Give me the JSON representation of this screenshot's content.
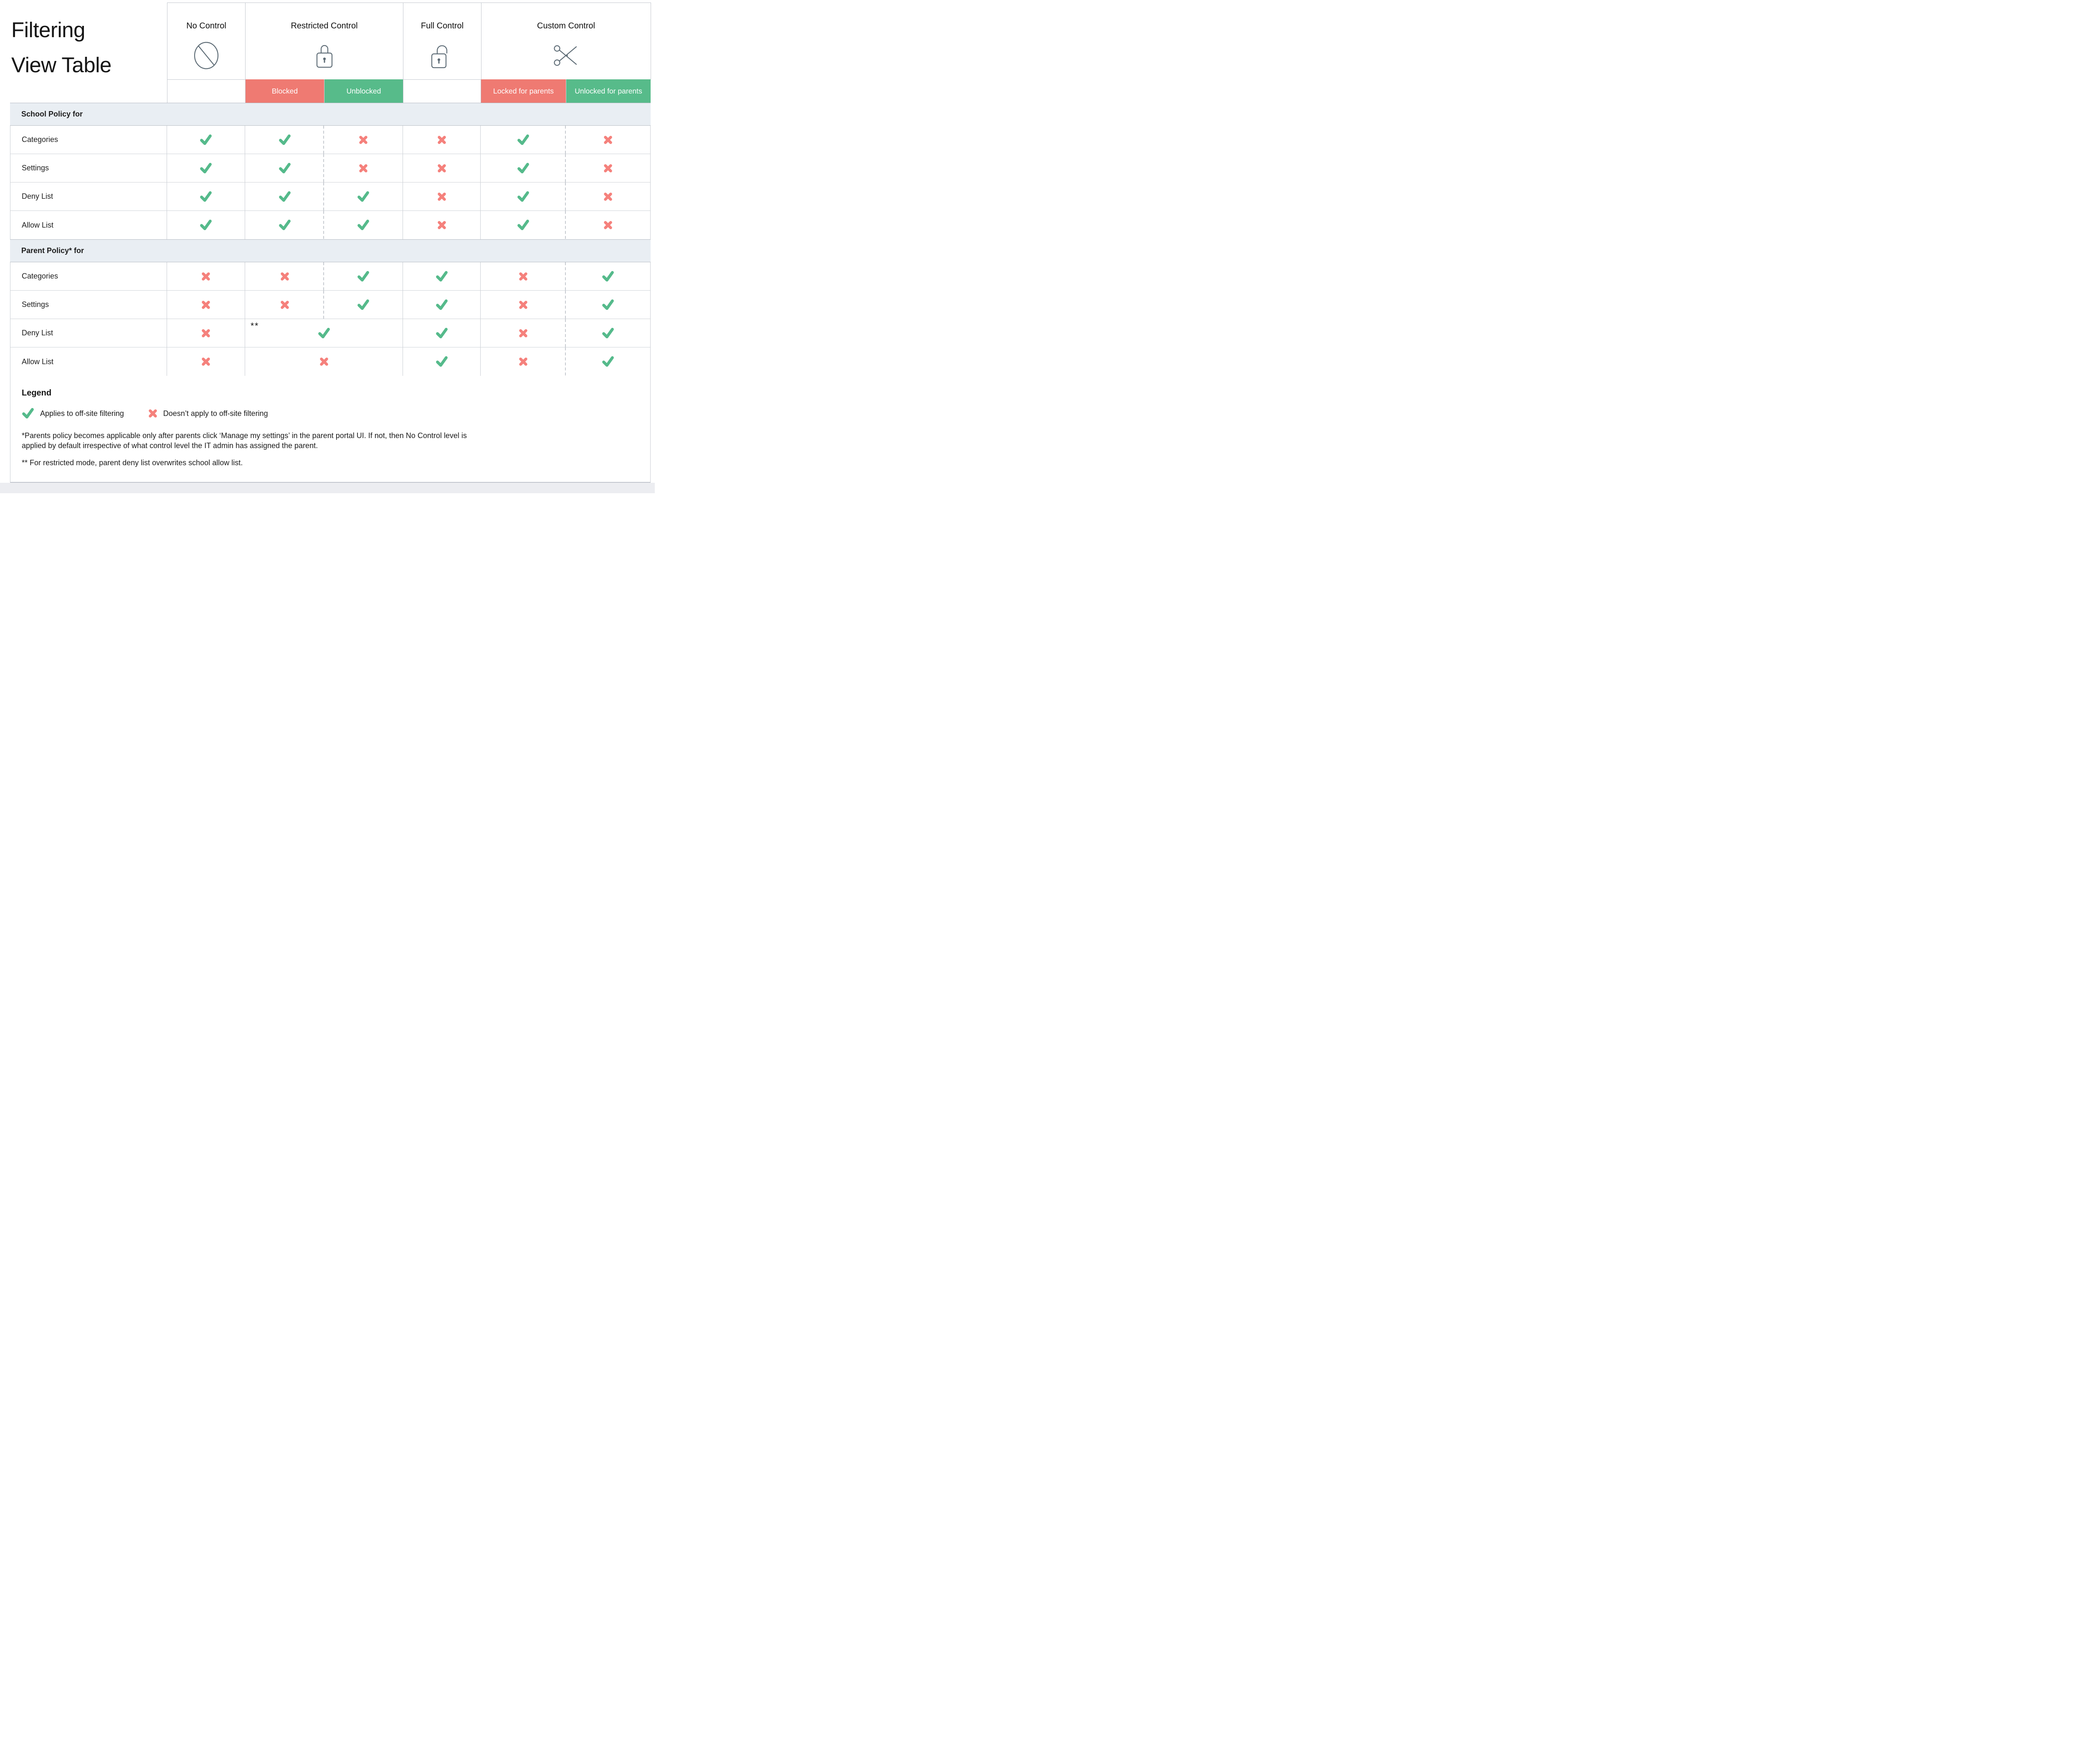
{
  "title": {
    "line1": "Filtering",
    "line2": "View Table"
  },
  "colors": {
    "blocked_red": "#EF7A72",
    "unblocked_green": "#57BB8A",
    "check": "#55BA8B",
    "cross": "#F5817C",
    "section_band": "#E9EEF3",
    "icon_stroke": "#5E6C76"
  },
  "columns": [
    {
      "label": "No Control",
      "icon": "prohibited-icon"
    },
    {
      "label": "Restricted Control",
      "icon": "lock-closed-icon",
      "sub": [
        {
          "label": "Blocked"
        },
        {
          "label": "Unblocked"
        }
      ]
    },
    {
      "label": "Full Control",
      "icon": "lock-open-icon"
    },
    {
      "label": "Custom Control",
      "icon": "scissors-icon",
      "sub": [
        {
          "label": "Locked for parents"
        },
        {
          "label": "Unlocked for parents"
        }
      ]
    }
  ],
  "sections": [
    {
      "title": "School Policy for",
      "rows": [
        {
          "label": "Categories",
          "cells": [
            {
              "mark": "check"
            },
            {
              "mark": "check"
            },
            {
              "mark": "cross"
            },
            {
              "mark": "cross"
            },
            {
              "mark": "check"
            },
            {
              "mark": "cross"
            }
          ]
        },
        {
          "label": "Settings",
          "cells": [
            {
              "mark": "check"
            },
            {
              "mark": "check"
            },
            {
              "mark": "cross"
            },
            {
              "mark": "cross"
            },
            {
              "mark": "check"
            },
            {
              "mark": "cross"
            }
          ]
        },
        {
          "label": "Deny List",
          "cells": [
            {
              "mark": "check"
            },
            {
              "mark": "check"
            },
            {
              "mark": "check"
            },
            {
              "mark": "cross"
            },
            {
              "mark": "check"
            },
            {
              "mark": "cross"
            }
          ]
        },
        {
          "label": "Allow List",
          "cells": [
            {
              "mark": "check"
            },
            {
              "mark": "check"
            },
            {
              "mark": "check"
            },
            {
              "mark": "cross"
            },
            {
              "mark": "check"
            },
            {
              "mark": "cross"
            }
          ]
        }
      ]
    },
    {
      "title": "Parent Policy* for",
      "rows": [
        {
          "label": "Categories",
          "cells": [
            {
              "mark": "cross"
            },
            {
              "mark": "cross"
            },
            {
              "mark": "check"
            },
            {
              "mark": "check"
            },
            {
              "mark": "cross"
            },
            {
              "mark": "check"
            }
          ]
        },
        {
          "label": "Settings",
          "cells": [
            {
              "mark": "cross"
            },
            {
              "mark": "cross"
            },
            {
              "mark": "check"
            },
            {
              "mark": "check"
            },
            {
              "mark": "cross"
            },
            {
              "mark": "check"
            }
          ]
        },
        {
          "label": "Deny List",
          "cells": [
            {
              "mark": "cross"
            },
            {
              "mark": "check",
              "span": 2,
              "note": "**"
            },
            {
              "mark": "check"
            },
            {
              "mark": "cross"
            },
            {
              "mark": "check"
            }
          ]
        },
        {
          "label": "Allow List",
          "cells": [
            {
              "mark": "cross"
            },
            {
              "mark": "cross",
              "span": 2
            },
            {
              "mark": "check"
            },
            {
              "mark": "cross"
            },
            {
              "mark": "check"
            }
          ]
        }
      ]
    }
  ],
  "legend": {
    "title": "Legend",
    "check_label": "Applies to off-site filtering",
    "cross_label": "Doesn’t apply to off-site filtering",
    "footnote1_line1": "*Parents policy becomes applicable only after parents click ‘Manage my settings’ in the parent portal UI. If not, then No Control level is",
    "footnote1_line2": "applied by default irrespective of what control level the IT admin has assigned the parent.",
    "footnote2": "** For restricted mode, parent deny list overwrites school allow list."
  }
}
